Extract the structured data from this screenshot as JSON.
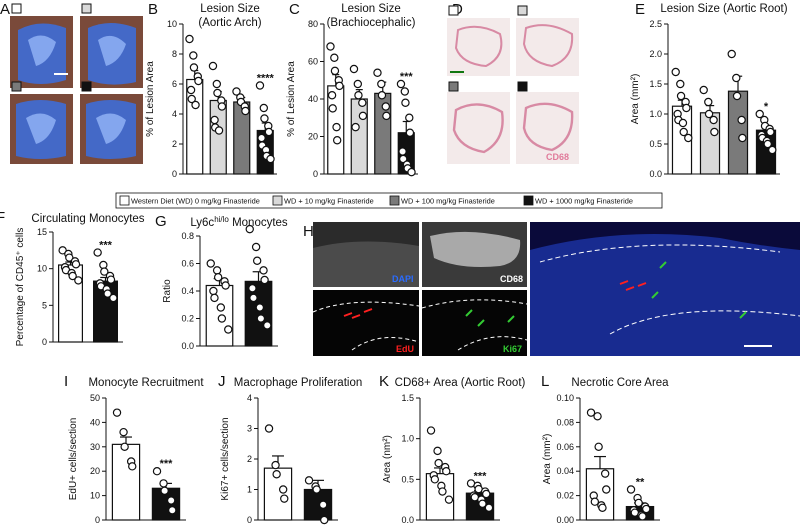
{
  "panel_letters": {
    "A": "A",
    "B": "B",
    "C": "C",
    "D": "D",
    "E": "E",
    "F": "F",
    "G": "G",
    "H": "H",
    "I": "I",
    "J": "J",
    "K": "K",
    "L": "L"
  },
  "legend": {
    "items": [
      {
        "label": "Western Diet (WD) 0 mg/kg Finasteride",
        "color": "#ffffff"
      },
      {
        "label": "WD + 10 mg/kg Finasteride",
        "color": "#d9d9d9"
      },
      {
        "label": "WD + 100 mg/kg Finasteride",
        "color": "#7a7a7a"
      },
      {
        "label": "WD + 1000 mg/kg Finasteride",
        "color": "#111111"
      }
    ]
  },
  "micro_labels": {
    "dapi": "DAPI",
    "cd68_h": "CD68",
    "edu": "EdU",
    "ki67": "Ki67",
    "cd68_d": "CD68"
  },
  "colors": {
    "dapi_blue": "#2a6cff",
    "edu_red": "#ff2020",
    "ki67_green": "#33cc33",
    "oil_red_blue": "#1f4fd8",
    "he_pink": "#e07a9a"
  },
  "chart_data": [
    {
      "id": "B",
      "type": "bar",
      "title": "Lesion Size",
      "subtitle": "(Aortic Arch)",
      "ylabel": "% of Lesion Area",
      "ylim": [
        0,
        10
      ],
      "yticks": [
        0,
        2,
        4,
        6,
        8,
        10
      ],
      "categories": [
        "0",
        "10",
        "100",
        "1000"
      ],
      "values": [
        6.3,
        4.9,
        4.8,
        2.9
      ],
      "errors": [
        0.6,
        0.6,
        0.3,
        0.5
      ],
      "points": [
        [
          9.0,
          7.9,
          7.1,
          6.5,
          6.2,
          5.6,
          5.0,
          4.6
        ],
        [
          7.2,
          6.0,
          5.4,
          4.9,
          4.5,
          3.6,
          3.1,
          2.9
        ],
        [
          5.5,
          5.1,
          4.8,
          4.5,
          4.2
        ],
        [
          5.9,
          4.4,
          3.7,
          3.2,
          2.8,
          2.4,
          1.9,
          1.6,
          1.2,
          1.0
        ]
      ],
      "significance": [
        "",
        "",
        "",
        "****"
      ]
    },
    {
      "id": "C",
      "type": "bar",
      "title": "Lesion Size",
      "subtitle": "(Brachiocephalic)",
      "ylabel": "% of Lesion Area",
      "ylim": [
        0,
        80
      ],
      "yticks": [
        0,
        20,
        40,
        60,
        80
      ],
      "categories": [
        "0",
        "10",
        "100",
        "1000"
      ],
      "values": [
        47,
        40,
        43,
        22
      ],
      "errors": [
        6,
        5,
        6,
        6
      ],
      "points": [
        [
          68,
          62,
          55,
          50,
          47,
          42,
          35,
          25,
          18
        ],
        [
          56,
          48,
          42,
          38,
          31,
          25
        ],
        [
          54,
          48,
          42,
          36,
          31
        ],
        [
          48,
          44,
          38,
          30,
          22,
          12,
          8,
          5,
          3,
          1
        ]
      ],
      "significance": [
        "",
        "",
        "",
        "***"
      ]
    },
    {
      "id": "E",
      "type": "bar",
      "title": "Lesion Size (Aortic Root)",
      "subtitle": "",
      "ylabel": "Area (mm²)",
      "ylim": [
        0,
        2.5
      ],
      "yticks": [
        0.0,
        0.5,
        1.0,
        1.5,
        2.0,
        2.5
      ],
      "categories": [
        "0",
        "10",
        "100",
        "1000"
      ],
      "values": [
        1.13,
        1.02,
        1.38,
        0.73
      ],
      "errors": [
        0.1,
        0.12,
        0.25,
        0.08
      ],
      "points": [
        [
          1.7,
          1.5,
          1.3,
          1.2,
          1.1,
          1.0,
          0.9,
          0.85,
          0.7,
          0.6
        ],
        [
          1.4,
          1.2,
          1.0,
          0.9,
          0.7
        ],
        [
          2.0,
          1.6,
          1.3,
          0.9,
          0.6
        ],
        [
          1.0,
          0.9,
          0.8,
          0.75,
          0.7,
          0.65,
          0.6,
          0.55,
          0.5,
          0.4
        ]
      ],
      "significance": [
        "",
        "",
        "",
        "*"
      ]
    },
    {
      "id": "F",
      "type": "bar",
      "title": "Circulating Monocytes",
      "subtitle": "",
      "ylabel": "Percentage of CD45⁺ cells",
      "ylim": [
        0,
        15
      ],
      "yticks": [
        0,
        5,
        10,
        15
      ],
      "categories": [
        "0",
        "1000"
      ],
      "values": [
        10.5,
        8.3
      ],
      "errors": [
        0.4,
        0.5
      ],
      "points": [
        [
          12.5,
          12.0,
          11.5,
          11.0,
          10.6,
          10.2,
          9.8,
          9.4,
          9.0,
          8.4
        ],
        [
          12.2,
          10.5,
          9.6,
          9.0,
          8.5,
          8.0,
          7.6,
          7.2,
          6.6,
          6.0
        ]
      ],
      "significance": [
        "",
        "***"
      ]
    },
    {
      "id": "G",
      "type": "bar",
      "title": "Ly6c",
      "title_sup": "hi/lo",
      "title_rest": " Monocytes",
      "subtitle": "",
      "ylabel": "Ratio",
      "ylim": [
        0,
        0.8
      ],
      "yticks": [
        0.0,
        0.2,
        0.4,
        0.6,
        0.8
      ],
      "categories": [
        "0",
        "1000"
      ],
      "values": [
        0.44,
        0.47
      ],
      "errors": [
        0.05,
        0.07
      ],
      "points": [
        [
          0.6,
          0.55,
          0.5,
          0.47,
          0.44,
          0.4,
          0.35,
          0.28,
          0.2,
          0.12
        ],
        [
          0.85,
          0.72,
          0.62,
          0.55,
          0.48,
          0.42,
          0.35,
          0.28,
          0.2,
          0.15
        ]
      ],
      "significance": [
        "",
        ""
      ]
    },
    {
      "id": "I",
      "type": "bar",
      "title": "Monocyte Recruitment",
      "subtitle": "",
      "ylabel": "EdU+ cells/section",
      "ylim": [
        0,
        50
      ],
      "yticks": [
        0,
        10,
        20,
        30,
        40,
        50
      ],
      "categories": [
        "0",
        "1000"
      ],
      "values": [
        31,
        13
      ],
      "errors": [
        3,
        2
      ],
      "points": [
        [
          44,
          36,
          30,
          24,
          22
        ],
        [
          20,
          15,
          12,
          8,
          4
        ]
      ],
      "significance": [
        "",
        "***"
      ]
    },
    {
      "id": "J",
      "type": "bar",
      "title": "Macrophage Proliferation",
      "subtitle": "",
      "ylabel": "Ki67+ cells/section",
      "ylim": [
        0,
        4
      ],
      "yticks": [
        0,
        1,
        2,
        3,
        4
      ],
      "categories": [
        "0",
        "1000"
      ],
      "values": [
        1.7,
        1.0
      ],
      "errors": [
        0.4,
        0.3
      ],
      "points": [
        [
          3.0,
          1.8,
          1.5,
          1.0,
          0.7
        ],
        [
          1.3,
          1.1,
          1.0,
          0.5,
          0.0
        ]
      ],
      "significance": [
        "",
        ""
      ]
    },
    {
      "id": "K",
      "type": "bar",
      "title": "CD68+ Area (Aortic Root)",
      "subtitle": "",
      "ylabel": "Area (nm²)",
      "ylim": [
        0,
        1.5
      ],
      "yticks": [
        0.0,
        0.5,
        1.0,
        1.5
      ],
      "categories": [
        "0",
        "1000"
      ],
      "values": [
        0.57,
        0.33
      ],
      "errors": [
        0.07,
        0.03
      ],
      "points": [
        [
          1.1,
          0.85,
          0.7,
          0.65,
          0.6,
          0.55,
          0.5,
          0.42,
          0.35,
          0.25
        ],
        [
          0.45,
          0.42,
          0.38,
          0.35,
          0.32,
          0.3,
          0.28,
          0.25,
          0.2,
          0.15
        ]
      ],
      "significance": [
        "",
        "***"
      ]
    },
    {
      "id": "L",
      "type": "bar",
      "title": "Necrotic Core Area",
      "subtitle": "",
      "ylabel": "Area (mm²)",
      "ylim": [
        0,
        0.1
      ],
      "yticks": [
        0.0,
        0.02,
        0.04,
        0.06,
        0.08,
        0.1
      ],
      "categories": [
        "0",
        "1000"
      ],
      "values": [
        0.042,
        0.011
      ],
      "errors": [
        0.01,
        0.003
      ],
      "points": [
        [
          0.088,
          0.085,
          0.06,
          0.038,
          0.025,
          0.02,
          0.015,
          0.012,
          0.01
        ],
        [
          0.025,
          0.018,
          0.014,
          0.011,
          0.009,
          0.008,
          0.006,
          0.004,
          0.003
        ]
      ],
      "significance": [
        "",
        "**"
      ]
    }
  ]
}
